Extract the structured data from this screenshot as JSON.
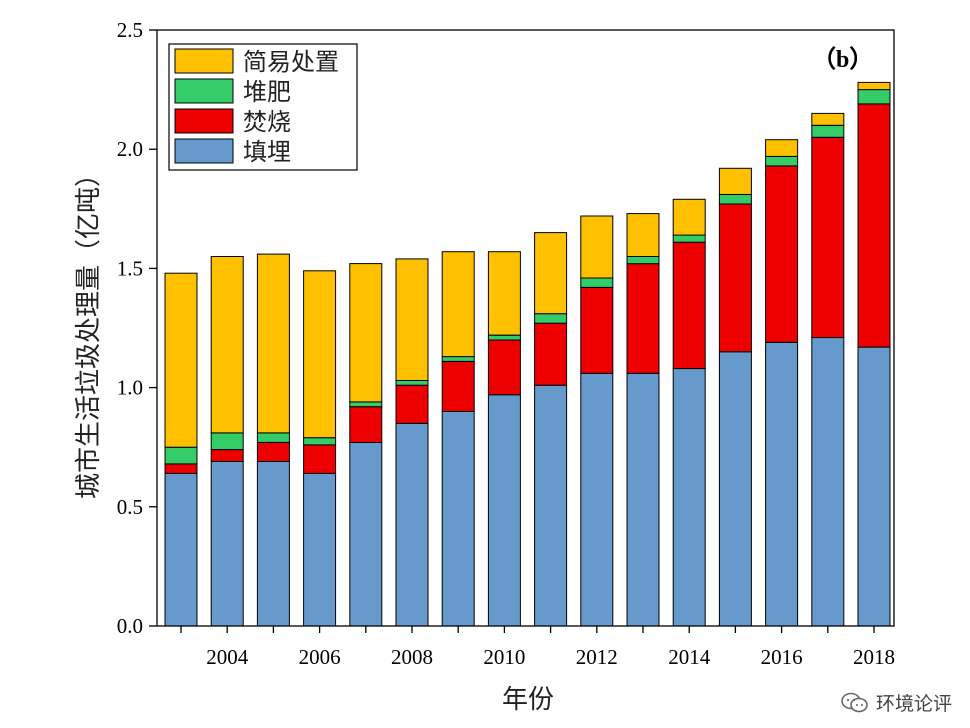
{
  "chart_data": {
    "type": "bar",
    "stacked": true,
    "panel_label": "（b）",
    "xlabel": "年份",
    "ylabel": "城市生活垃圾处理量（亿吨）",
    "ylim": [
      0,
      2.5
    ],
    "yticks": [
      "0.0",
      "0.5",
      "1.0",
      "1.5",
      "2.0",
      "2.5"
    ],
    "ytick_values": [
      0,
      0.5,
      1.0,
      1.5,
      2.0,
      2.5
    ],
    "categories": [
      2003,
      2004,
      2005,
      2006,
      2007,
      2008,
      2009,
      2010,
      2011,
      2012,
      2013,
      2014,
      2015,
      2016,
      2017,
      2018
    ],
    "xtick_labels": [
      "2004",
      "2006",
      "2008",
      "2010",
      "2012",
      "2014",
      "2016",
      "2018"
    ],
    "legend_position": "top-left",
    "series": [
      {
        "name": "填埋",
        "color": "#6699CC",
        "values": [
          0.64,
          0.69,
          0.69,
          0.64,
          0.77,
          0.85,
          0.9,
          0.97,
          1.01,
          1.06,
          1.06,
          1.08,
          1.15,
          1.19,
          1.21,
          1.17
        ]
      },
      {
        "name": "焚烧",
        "color": "#EE0000",
        "values": [
          0.04,
          0.05,
          0.08,
          0.12,
          0.15,
          0.16,
          0.21,
          0.23,
          0.26,
          0.36,
          0.46,
          0.53,
          0.62,
          0.74,
          0.84,
          1.02
        ]
      },
      {
        "name": "堆肥",
        "color": "#33CC66",
        "values": [
          0.07,
          0.07,
          0.04,
          0.03,
          0.02,
          0.02,
          0.02,
          0.02,
          0.04,
          0.04,
          0.03,
          0.03,
          0.04,
          0.04,
          0.05,
          0.06
        ]
      },
      {
        "name": "简易处置",
        "color": "#FFC000",
        "values": [
          0.73,
          0.74,
          0.75,
          0.7,
          0.58,
          0.51,
          0.44,
          0.35,
          0.34,
          0.26,
          0.18,
          0.15,
          0.11,
          0.07,
          0.05,
          0.03
        ]
      }
    ],
    "legend_order": [
      "简易处置",
      "堆肥",
      "焚烧",
      "填埋"
    ]
  },
  "watermark": {
    "text": "环境论评",
    "icon": "wechat-icon"
  }
}
